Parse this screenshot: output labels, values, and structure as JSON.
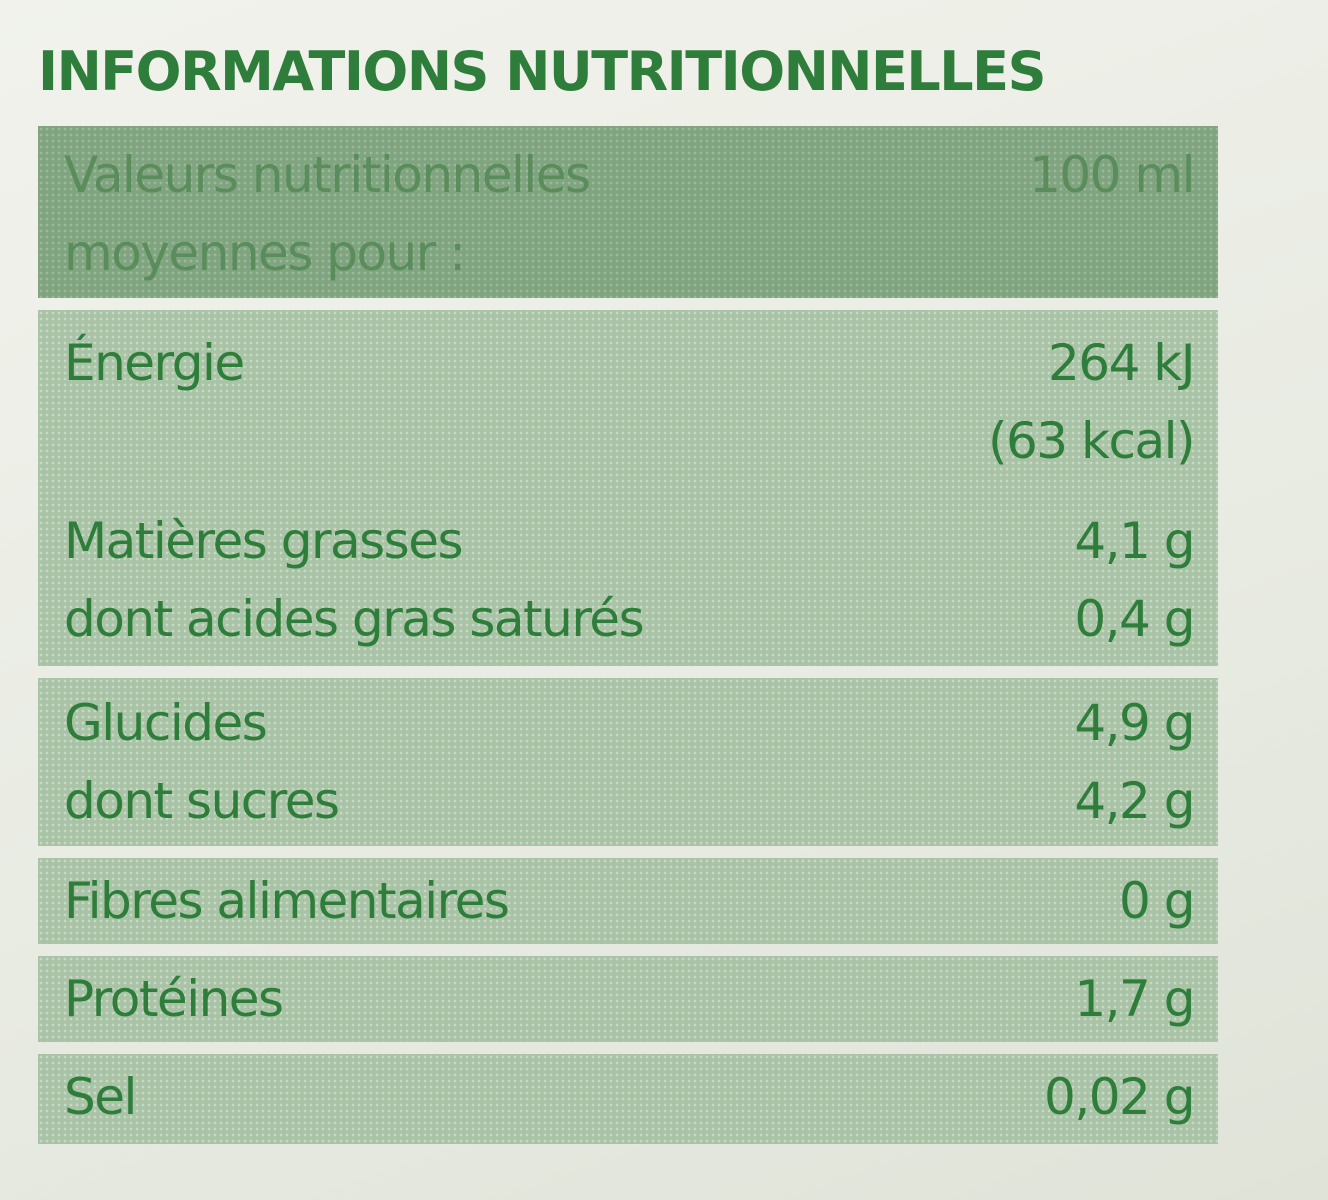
{
  "title": "INFORMATIONS NUTRITIONNELLES",
  "header": {
    "label_line1": "Valeurs nutritionnelles",
    "label_line2": "moyennes pour :",
    "unit": "100 ml"
  },
  "rows": {
    "energie": {
      "label": "Énergie",
      "value_kj": "264 kJ",
      "value_kcal": "(63 kcal)"
    },
    "matieres_grasses": {
      "label": "Matières grasses",
      "value": "4,1 g"
    },
    "satures": {
      "label": "dont acides gras saturés",
      "value": "0,4 g"
    },
    "glucides": {
      "label": "Glucides",
      "value": "4,9 g"
    },
    "sucres": {
      "label": "dont sucres",
      "value": "4,2 g"
    },
    "fibres": {
      "label": "Fibres alimentaires",
      "value": "0 g"
    },
    "proteines": {
      "label": "Protéines",
      "value": "1,7 g"
    },
    "sel": {
      "label": "Sel",
      "value": "0,02 g"
    }
  },
  "colors": {
    "text_green": "#2e7d3a",
    "header_band": "#7fa47f",
    "row_band": "#a9c3a6"
  }
}
